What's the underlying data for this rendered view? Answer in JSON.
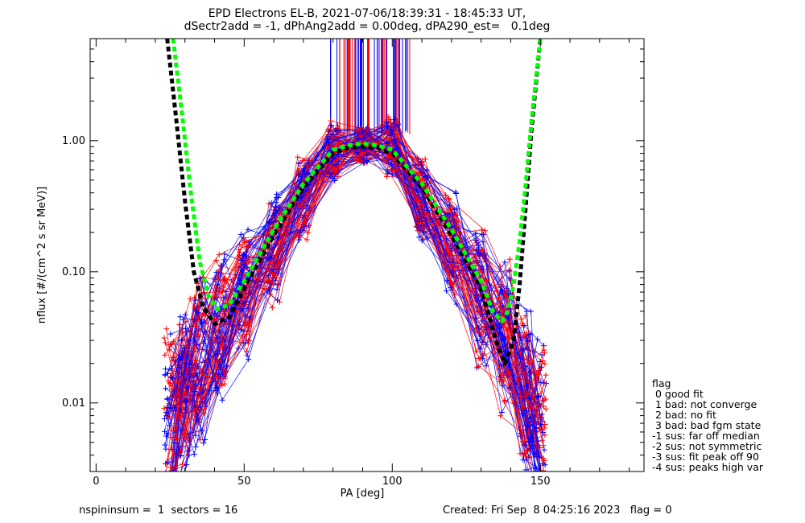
{
  "title_line1": "EPD Electrons EL-B, 2021-07-06/18:39:31 - 18:45:33 UT,",
  "title_line2": "dSectr2add = -1, dPhAng2add = 0.00deg, dPA290_est=   0.1deg",
  "footer": {
    "left": "nspininsum =  1  sectors = 16",
    "right": "Created: Fri Sep  8 04:25:16 2023   flag = 0"
  },
  "legend": {
    "title": "flag",
    "items": [
      " 0 good fit",
      " 1 bad: not converge",
      " 2 bad: no fit",
      " 3 bad: bad fgm state",
      "-1 sus: far off median",
      "-2 sus: not symmetric",
      "-3 sus: fit peak off 90",
      "-4 sus: peaks high var"
    ]
  },
  "chart_data": {
    "type": "line",
    "xlabel": "PA [deg]",
    "ylabel": "nflux [#/(cm^2 s sr MeV)]",
    "xlim": [
      -2,
      185
    ],
    "ylim": [
      0.003,
      6
    ],
    "yscale": "log",
    "xticks": [
      0,
      50,
      100,
      150
    ],
    "xtick_labels": [
      "0",
      "50",
      "100",
      "150"
    ],
    "yticks": [
      0.01,
      0.1,
      1.0
    ],
    "ytick_labels": [
      "0.01",
      "0.10",
      "1.00"
    ],
    "colors": {
      "red": "#ff0000",
      "blue": "#0000ff",
      "green": "#00ff00",
      "black": "#000000"
    },
    "pa_grid": [
      25,
      30,
      35,
      42,
      50,
      60,
      70,
      80,
      90,
      100,
      110,
      120,
      130,
      138,
      145,
      150
    ],
    "mean_profile": [
      0.006,
      0.012,
      0.02,
      0.035,
      0.07,
      0.15,
      0.35,
      0.85,
      0.92,
      0.9,
      0.35,
      0.15,
      0.065,
      0.03,
      0.012,
      0.007
    ],
    "bundle": {
      "count": 100,
      "spread_log10": 0.45
    },
    "fits": [
      {
        "name": "",
        "color": "black",
        "pa": [
          24,
          27,
          30,
          33,
          36,
          40,
          45,
          50,
          60,
          70,
          80,
          85,
          90,
          95,
          100,
          110,
          120,
          130,
          135,
          138,
          141,
          143,
          145,
          147,
          150
        ],
        "values": [
          6,
          1.5,
          0.35,
          0.1,
          0.055,
          0.04,
          0.045,
          0.075,
          0.19,
          0.44,
          0.8,
          0.88,
          0.9,
          0.88,
          0.8,
          0.44,
          0.19,
          0.075,
          0.03,
          0.02,
          0.03,
          0.08,
          0.3,
          1.2,
          6
        ]
      },
      {
        "name": "",
        "color": "green",
        "pa": [
          26,
          29,
          32,
          35,
          38,
          41,
          45,
          50,
          60,
          70,
          80,
          85,
          90,
          95,
          100,
          110,
          120,
          130,
          134,
          137,
          139,
          141,
          143,
          145,
          147,
          150
        ],
        "values": [
          6,
          1.6,
          0.4,
          0.12,
          0.065,
          0.052,
          0.056,
          0.085,
          0.21,
          0.47,
          0.85,
          0.92,
          0.95,
          0.92,
          0.85,
          0.47,
          0.21,
          0.085,
          0.05,
          0.042,
          0.05,
          0.08,
          0.17,
          0.45,
          1.4,
          6
        ]
      }
    ]
  }
}
